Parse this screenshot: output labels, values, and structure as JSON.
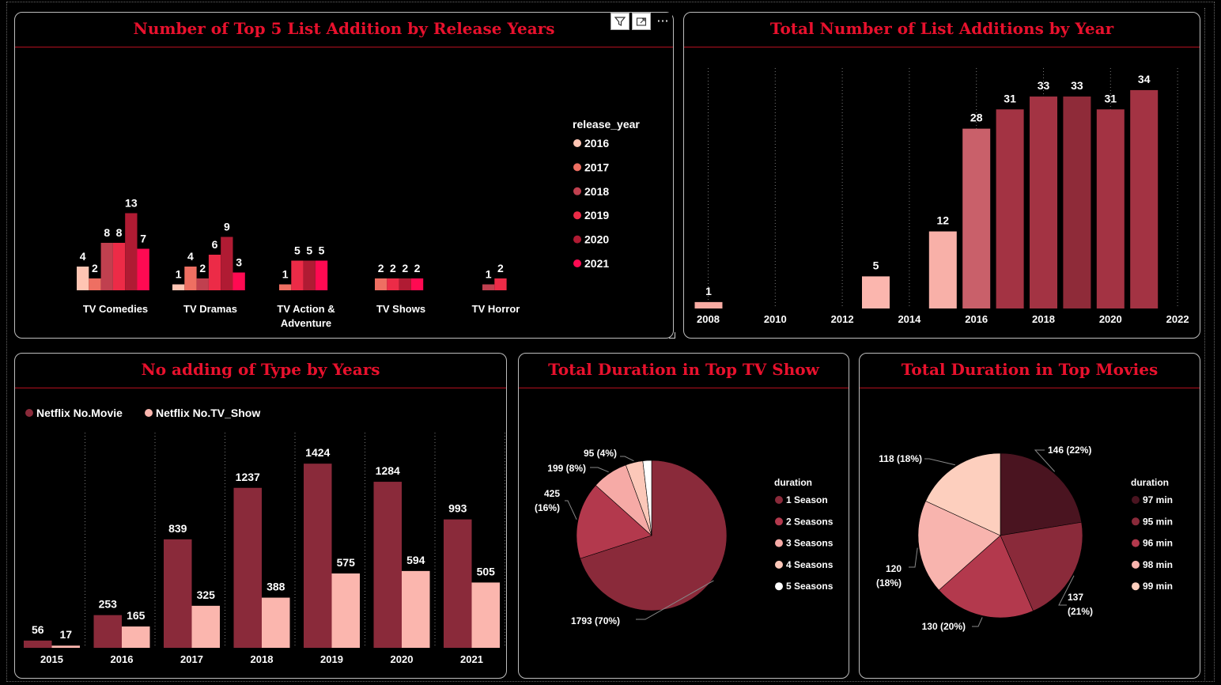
{
  "toolbar": {
    "filter_icon": "filter-icon",
    "focus_icon": "focus-mode-icon",
    "more_label": "···"
  },
  "panels": {
    "release_years": {
      "title": "Number of Top 5 List Addition by Release Years"
    },
    "list_additions": {
      "title": "Total Number of List Additions by Year"
    },
    "type_years": {
      "title": "No adding of Type by Years"
    },
    "tv_duration": {
      "title": "Total Duration in Top TV Show"
    },
    "movie_duration": {
      "title": "Total Duration in Top Movies"
    }
  },
  "chart_data": [
    {
      "id": "release_years",
      "type": "bar",
      "title": "Number of Top 5 List Addition by Release Years",
      "categories": [
        "TV Comedies",
        "TV Dramas",
        "TV Action & Adventure",
        "TV Shows",
        "TV Horror"
      ],
      "category_lines": [
        [
          "TV Comedies"
        ],
        [
          "TV Dramas"
        ],
        [
          "TV Action &",
          "Adventure"
        ],
        [
          "TV Shows"
        ],
        [
          "TV Horror"
        ]
      ],
      "legend_title": "release_year",
      "legend_position": "right",
      "series": [
        {
          "name": "2016",
          "color": "#ffc5b3",
          "values": [
            4,
            1,
            null,
            null,
            null
          ]
        },
        {
          "name": "2017",
          "color": "#ee6f62",
          "values": [
            2,
            4,
            1,
            2,
            null
          ]
        },
        {
          "name": "2018",
          "color": "#c0404f",
          "values": [
            8,
            2,
            null,
            null,
            1
          ]
        },
        {
          "name": "2019",
          "color": "#ec2b47",
          "values": [
            8,
            6,
            5,
            2,
            2
          ]
        },
        {
          "name": "2020",
          "color": "#b01b33",
          "values": [
            13,
            9,
            5,
            2,
            null
          ]
        },
        {
          "name": "2021",
          "color": "#ff0a52",
          "values": [
            7,
            3,
            5,
            2,
            null
          ]
        }
      ]
    },
    {
      "id": "list_additions",
      "type": "bar",
      "title": "Total Number of List Additions by Year",
      "x": [
        2008,
        2013,
        2015,
        2016,
        2017,
        2018,
        2019,
        2020,
        2021
      ],
      "values": [
        1,
        5,
        12,
        28,
        31,
        33,
        33,
        31,
        34
      ],
      "colors": [
        "#f8aba2",
        "#fbb6ae",
        "#f8b0a8",
        "#c9606a",
        "#a33343",
        "#a33343",
        "#8f2b39",
        "#a33343",
        "#a33343"
      ],
      "x_ticks": [
        2008,
        2010,
        2012,
        2014,
        2016,
        2018,
        2020,
        2022
      ],
      "xlim": [
        2008,
        2022
      ],
      "grid": "vertical-dotted"
    },
    {
      "id": "type_years",
      "type": "bar",
      "title": "No adding of Type by Years",
      "categories": [
        "2015",
        "2016",
        "2017",
        "2018",
        "2019",
        "2020",
        "2021"
      ],
      "legend_position": "top-left",
      "series": [
        {
          "name": "Netflix No.Movie",
          "color": "#8a2a3a",
          "values": [
            56,
            253,
            839,
            1237,
            1424,
            1284,
            993
          ]
        },
        {
          "name": "Netflix No.TV_Show",
          "color": "#fbb6ae",
          "values": [
            17,
            165,
            325,
            388,
            575,
            594,
            505
          ]
        }
      ],
      "grid": "vertical-dotted"
    },
    {
      "id": "tv_duration",
      "type": "pie",
      "title": "Total Duration in Top TV Show",
      "legend_title": "duration",
      "legend_position": "right",
      "slices": [
        {
          "label": "1 Season",
          "value": 1793,
          "pct": "70%",
          "color": "#8a2a3a",
          "lines": [
            "1793 (70%)"
          ]
        },
        {
          "label": "2 Seasons",
          "value": 425,
          "pct": "16%",
          "color": "#b3394d",
          "lines": [
            "425",
            "(16%)"
          ]
        },
        {
          "label": "3 Seasons",
          "value": 199,
          "pct": "8%",
          "color": "#f6aaa6",
          "lines": [
            "199 (8%)"
          ]
        },
        {
          "label": "4 Seasons",
          "value": 95,
          "pct": "4%",
          "color": "#fcc8b9",
          "lines": [
            "95 (4%)"
          ]
        },
        {
          "label": "5 Seasons",
          "value": 48,
          "pct": "",
          "color": "#ffffff",
          "lines": []
        }
      ]
    },
    {
      "id": "movie_duration",
      "type": "pie",
      "title": "Total Duration in Top Movies",
      "legend_title": "duration",
      "legend_position": "right",
      "slices": [
        {
          "label": "97 min",
          "value": 146,
          "pct": "22%",
          "color": "#4a1420",
          "lines": [
            "146 (22%)"
          ]
        },
        {
          "label": "95 min",
          "value": 137,
          "pct": "21%",
          "color": "#8a2a3a",
          "lines": [
            "137",
            "(21%)"
          ]
        },
        {
          "label": "96 min",
          "value": 130,
          "pct": "20%",
          "color": "#b3394d",
          "lines": [
            "130 (20%)"
          ]
        },
        {
          "label": "98 min",
          "value": 120,
          "pct": "18%",
          "color": "#f8b4ae",
          "lines": [
            "120",
            "(18%)"
          ]
        },
        {
          "label": "99 min",
          "value": 118,
          "pct": "18%",
          "color": "#fdcfbe",
          "lines": [
            "118 (18%)"
          ]
        }
      ]
    }
  ]
}
